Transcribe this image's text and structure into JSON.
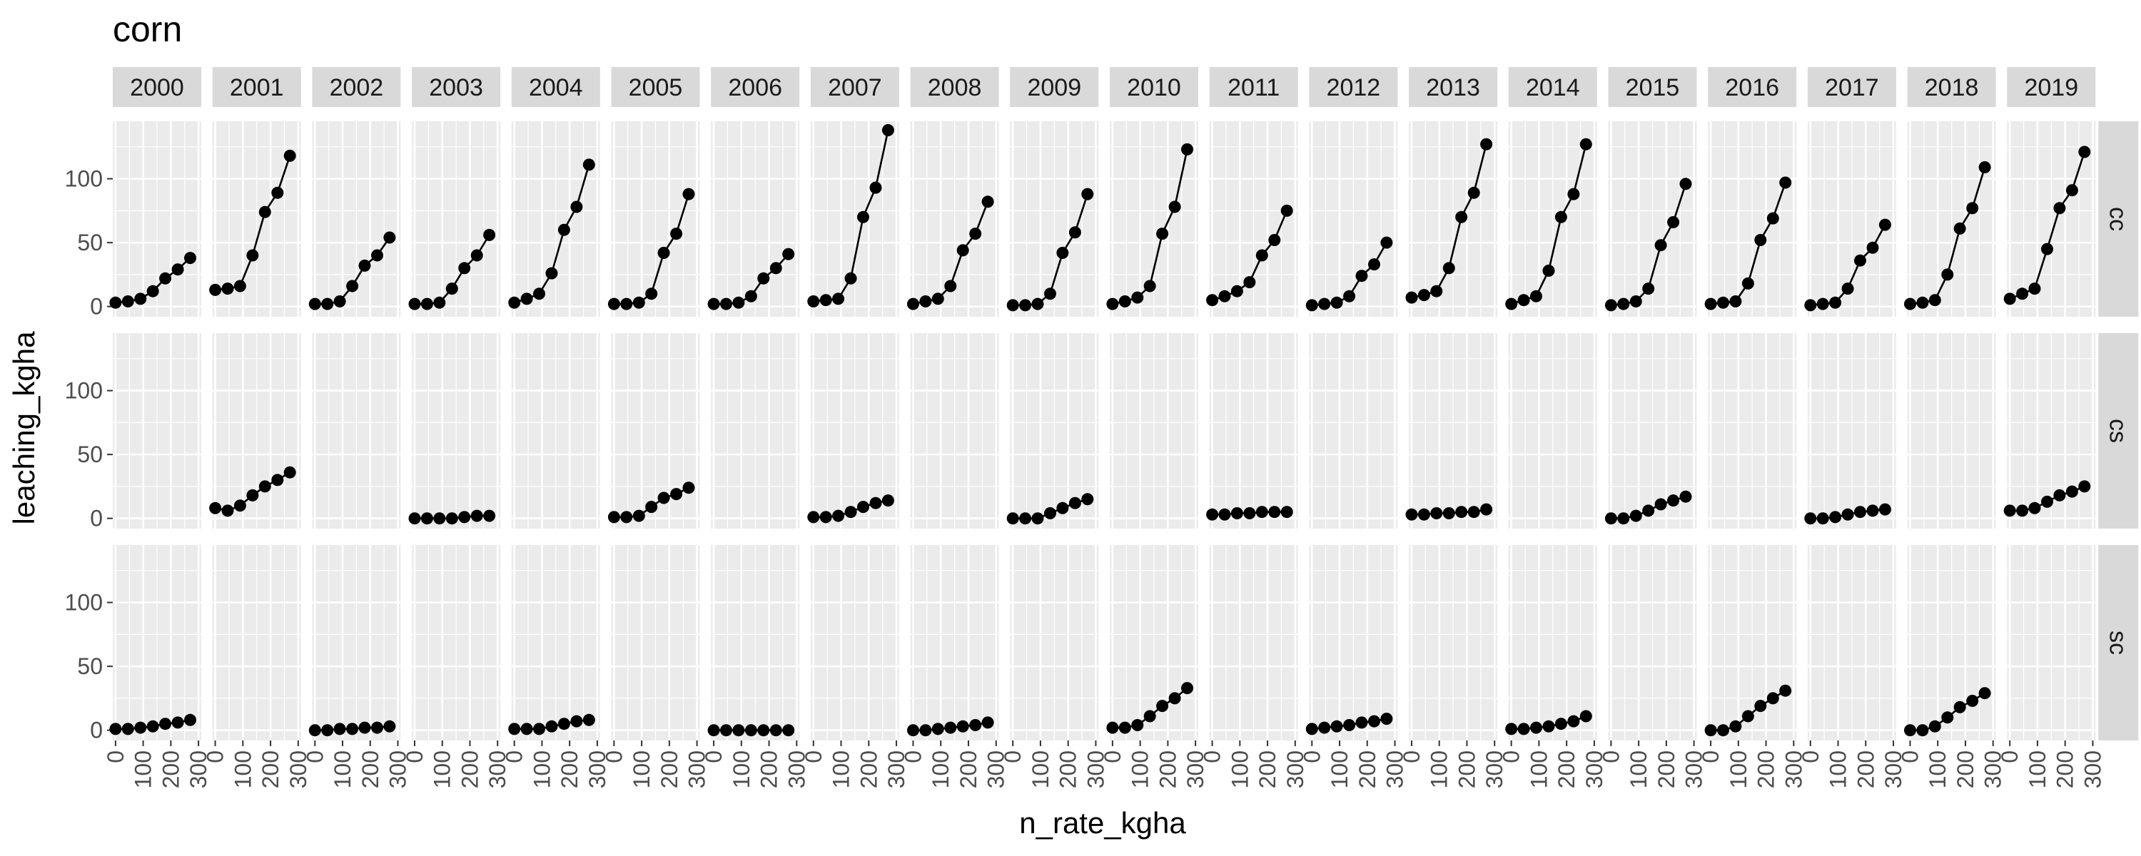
{
  "chart_data": {
    "type": "line",
    "title": "corn",
    "xlabel": "n_rate_kgha",
    "ylabel": "leaching_kgha",
    "xlim": [
      -10,
      310
    ],
    "ylim": [
      -8,
      145
    ],
    "x_ticks": [
      0,
      100,
      200,
      300
    ],
    "y_ticks": [
      0,
      50,
      100
    ],
    "grid": true,
    "facet_cols": [
      "2000",
      "2001",
      "2002",
      "2003",
      "2004",
      "2005",
      "2006",
      "2007",
      "2008",
      "2009",
      "2010",
      "2011",
      "2012",
      "2013",
      "2014",
      "2015",
      "2016",
      "2017",
      "2018",
      "2019"
    ],
    "facet_rows": [
      "cc",
      "cs",
      "sc"
    ],
    "x": [
      0,
      45,
      90,
      135,
      180,
      225,
      270
    ],
    "panels": [
      {
        "row": "cc",
        "year": "2000",
        "values": [
          3,
          4,
          6,
          12,
          22,
          29,
          38
        ]
      },
      {
        "row": "cc",
        "year": "2001",
        "values": [
          13,
          14,
          16,
          40,
          74,
          89,
          118
        ]
      },
      {
        "row": "cc",
        "year": "2002",
        "values": [
          2,
          2,
          4,
          16,
          32,
          40,
          54
        ]
      },
      {
        "row": "cc",
        "year": "2003",
        "values": [
          2,
          2,
          3,
          14,
          30,
          40,
          56
        ]
      },
      {
        "row": "cc",
        "year": "2004",
        "values": [
          3,
          6,
          10,
          26,
          60,
          78,
          111
        ]
      },
      {
        "row": "cc",
        "year": "2005",
        "values": [
          2,
          2,
          3,
          10,
          42,
          57,
          88
        ]
      },
      {
        "row": "cc",
        "year": "2006",
        "values": [
          2,
          2,
          3,
          8,
          22,
          30,
          41
        ]
      },
      {
        "row": "cc",
        "year": "2007",
        "values": [
          4,
          5,
          6,
          22,
          70,
          93,
          138
        ]
      },
      {
        "row": "cc",
        "year": "2008",
        "values": [
          2,
          4,
          6,
          16,
          44,
          57,
          82
        ]
      },
      {
        "row": "cc",
        "year": "2009",
        "values": [
          1,
          1,
          2,
          10,
          42,
          58,
          88
        ]
      },
      {
        "row": "cc",
        "year": "2010",
        "values": [
          2,
          4,
          7,
          16,
          57,
          78,
          123
        ]
      },
      {
        "row": "cc",
        "year": "2011",
        "values": [
          5,
          8,
          12,
          19,
          40,
          52,
          75
        ]
      },
      {
        "row": "cc",
        "year": "2012",
        "values": [
          1,
          2,
          3,
          8,
          24,
          33,
          50
        ]
      },
      {
        "row": "cc",
        "year": "2013",
        "values": [
          7,
          9,
          12,
          30,
          70,
          89,
          127
        ]
      },
      {
        "row": "cc",
        "year": "2014",
        "values": [
          2,
          5,
          8,
          28,
          70,
          88,
          127
        ]
      },
      {
        "row": "cc",
        "year": "2015",
        "values": [
          1,
          2,
          4,
          14,
          48,
          66,
          96
        ]
      },
      {
        "row": "cc",
        "year": "2016",
        "values": [
          2,
          3,
          4,
          18,
          52,
          69,
          97
        ]
      },
      {
        "row": "cc",
        "year": "2017",
        "values": [
          1,
          2,
          3,
          14,
          36,
          46,
          64
        ]
      },
      {
        "row": "cc",
        "year": "2018",
        "values": [
          2,
          3,
          5,
          25,
          61,
          77,
          109
        ]
      },
      {
        "row": "cc",
        "year": "2019",
        "values": [
          6,
          10,
          14,
          45,
          77,
          91,
          121
        ]
      },
      {
        "row": "cs",
        "year": "2001",
        "values": [
          8,
          6,
          10,
          18,
          25,
          30,
          36
        ]
      },
      {
        "row": "cs",
        "year": "2003",
        "values": [
          0,
          0,
          0,
          0,
          1,
          2,
          2
        ]
      },
      {
        "row": "cs",
        "year": "2005",
        "values": [
          1,
          1,
          2,
          9,
          16,
          19,
          24
        ]
      },
      {
        "row": "cs",
        "year": "2007",
        "values": [
          1,
          1,
          2,
          5,
          9,
          12,
          14
        ]
      },
      {
        "row": "cs",
        "year": "2009",
        "values": [
          0,
          0,
          0,
          4,
          8,
          12,
          15
        ]
      },
      {
        "row": "cs",
        "year": "2011",
        "values": [
          3,
          3,
          4,
          4,
          5,
          5,
          5
        ]
      },
      {
        "row": "cs",
        "year": "2013",
        "values": [
          3,
          3,
          4,
          4,
          5,
          5,
          7
        ]
      },
      {
        "row": "cs",
        "year": "2015",
        "values": [
          0,
          0,
          2,
          6,
          11,
          14,
          17
        ]
      },
      {
        "row": "cs",
        "year": "2017",
        "values": [
          0,
          0,
          1,
          3,
          5,
          6,
          7
        ]
      },
      {
        "row": "cs",
        "year": "2019",
        "values": [
          6,
          6,
          8,
          13,
          18,
          21,
          25
        ]
      },
      {
        "row": "sc",
        "year": "2000",
        "values": [
          1,
          1,
          2,
          3,
          5,
          6,
          8
        ]
      },
      {
        "row": "sc",
        "year": "2002",
        "values": [
          0,
          0,
          1,
          1,
          2,
          2,
          3
        ]
      },
      {
        "row": "sc",
        "year": "2004",
        "values": [
          1,
          1,
          1,
          3,
          5,
          7,
          8
        ]
      },
      {
        "row": "sc",
        "year": "2006",
        "values": [
          0,
          0,
          0,
          0,
          0,
          0,
          0
        ]
      },
      {
        "row": "sc",
        "year": "2008",
        "values": [
          0,
          0,
          1,
          2,
          3,
          4,
          6
        ]
      },
      {
        "row": "sc",
        "year": "2010",
        "values": [
          2,
          2,
          4,
          11,
          19,
          25,
          33
        ]
      },
      {
        "row": "sc",
        "year": "2012",
        "values": [
          1,
          2,
          3,
          4,
          6,
          7,
          9
        ]
      },
      {
        "row": "sc",
        "year": "2014",
        "values": [
          1,
          1,
          2,
          3,
          5,
          7,
          11
        ]
      },
      {
        "row": "sc",
        "year": "2016",
        "values": [
          0,
          0,
          3,
          11,
          19,
          25,
          31
        ]
      },
      {
        "row": "sc",
        "year": "2018",
        "values": [
          0,
          0,
          3,
          10,
          18,
          23,
          29
        ]
      }
    ]
  },
  "colors": {
    "panel_bg": "#ebebeb",
    "grid_major": "#ffffff",
    "strip_bg": "#d9d9d9",
    "strip_text": "#1a1a1a",
    "tick_text": "#4d4d4d",
    "tick_line": "#333333",
    "series": "#000000"
  }
}
